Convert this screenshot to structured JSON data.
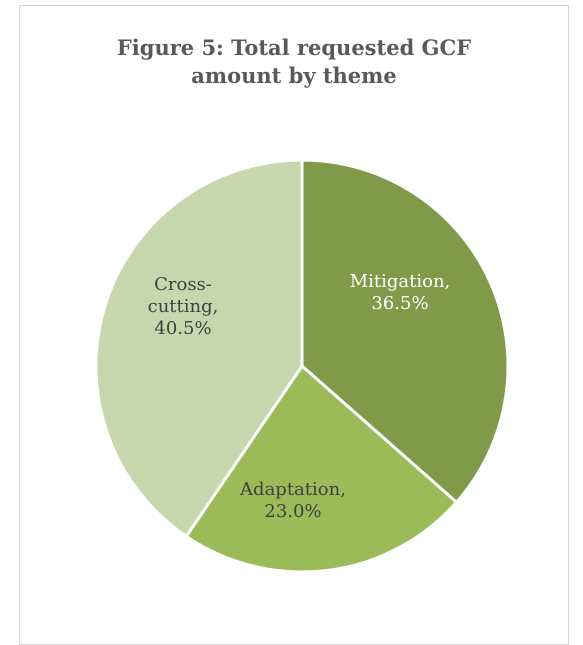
{
  "chart_data": {
    "type": "pie",
    "title": [
      "Figure 5:  Total requested GCF",
      "amount by theme"
    ],
    "slices": [
      {
        "label": [
          "Mitigation,",
          "36.5%"
        ],
        "name": "Mitigation",
        "value": 36.5,
        "color": "#7f9a48",
        "text_color": "#ffffff"
      },
      {
        "label": [
          "Adaptation,",
          "23.0%"
        ],
        "name": "Adaptation",
        "value": 23.0,
        "color": "#9bbb59",
        "text_color": "#404040"
      },
      {
        "label": [
          "Cross-",
          "cutting,",
          "40.5%"
        ],
        "name": "Cross-cutting",
        "value": 40.5,
        "color": "#c6d7ae",
        "text_color": "#404040"
      }
    ]
  }
}
